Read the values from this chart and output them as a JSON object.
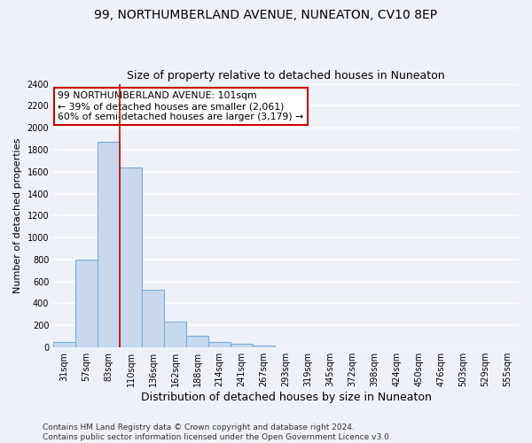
{
  "title": "99, NORTHUMBERLAND AVENUE, NUNEATON, CV10 8EP",
  "subtitle": "Size of property relative to detached houses in Nuneaton",
  "xlabel": "Distribution of detached houses by size in Nuneaton",
  "ylabel": "Number of detached properties",
  "categories": [
    "31sqm",
    "57sqm",
    "83sqm",
    "110sqm",
    "136sqm",
    "162sqm",
    "188sqm",
    "214sqm",
    "241sqm",
    "267sqm",
    "293sqm",
    "319sqm",
    "345sqm",
    "372sqm",
    "398sqm",
    "424sqm",
    "450sqm",
    "476sqm",
    "503sqm",
    "529sqm",
    "555sqm"
  ],
  "values": [
    50,
    800,
    1870,
    1635,
    525,
    235,
    105,
    48,
    30,
    20,
    0,
    0,
    0,
    0,
    0,
    0,
    0,
    0,
    0,
    0,
    0
  ],
  "bar_color": "#c8d8ee",
  "bar_edge_color": "#7aaed6",
  "vline_color": "#cc0000",
  "annotation_text": "99 NORTHUMBERLAND AVENUE: 101sqm\n← 39% of detached houses are smaller (2,061)\n60% of semi-detached houses are larger (3,179) →",
  "annotation_box_color": "#ffffff",
  "annotation_box_edge": "#cc0000",
  "ylim": [
    0,
    2400
  ],
  "yticks": [
    0,
    200,
    400,
    600,
    800,
    1000,
    1200,
    1400,
    1600,
    1800,
    2000,
    2200,
    2400
  ],
  "footer": "Contains HM Land Registry data © Crown copyright and database right 2024.\nContains public sector information licensed under the Open Government Licence v3.0.",
  "background_color": "#eef2f8",
  "grid_color": "#ffffff",
  "title_fontsize": 10,
  "subtitle_fontsize": 9,
  "tick_fontsize": 7,
  "ylabel_fontsize": 8,
  "xlabel_fontsize": 9,
  "footer_fontsize": 6.5
}
